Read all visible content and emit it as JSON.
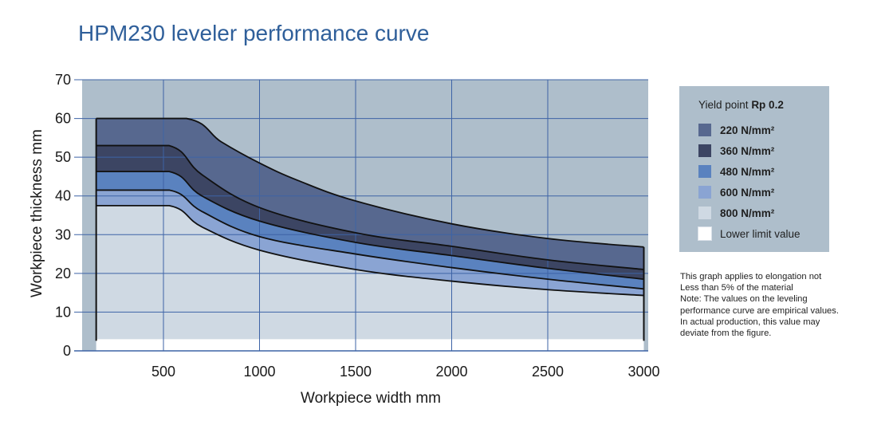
{
  "chart_data": {
    "type": "area",
    "title": "HPM230 leveler performance curve",
    "xlabel": "Workpiece width mm",
    "ylabel": "Workpiece thickness mm",
    "xlim": [
      0,
      3000
    ],
    "ylim": [
      0,
      70
    ],
    "x_ticks": [
      500,
      1000,
      1500,
      2000,
      2500,
      3000
    ],
    "y_ticks": [
      0,
      10,
      20,
      30,
      40,
      50,
      60,
      70
    ],
    "grid": true,
    "legend_position": "right",
    "legend_title": "Yield point",
    "legend_title_bold": "Rp 0.2",
    "series": [
      {
        "name": "220 N/mm²",
        "color": "#57688f",
        "x": [
          150,
          620,
          800,
          1000,
          1200,
          1500,
          2000,
          2500,
          3000
        ],
        "y": [
          60,
          60,
          54,
          48.5,
          44,
          38.7,
          32.8,
          29,
          26.8
        ]
      },
      {
        "name": "360 N/mm²",
        "color": "#3c4563",
        "x": [
          150,
          530,
          700,
          1000,
          1500,
          2000,
          2500,
          3000
        ],
        "y": [
          53,
          53,
          45.5,
          37,
          30.5,
          27,
          23.5,
          21
        ]
      },
      {
        "name": "480 N/mm²",
        "color": "#5a82bf",
        "x": [
          150,
          530,
          700,
          1000,
          1500,
          2000,
          2500,
          3000
        ],
        "y": [
          46.3,
          46.3,
          40,
          33.5,
          28,
          24.6,
          21.3,
          18.5
        ]
      },
      {
        "name": "600 N/mm²",
        "color": "#8aa4d3",
        "x": [
          150,
          530,
          700,
          1000,
          1500,
          2000,
          2500,
          3000
        ],
        "y": [
          41.5,
          41.5,
          36,
          29.5,
          25,
          21.5,
          18.5,
          16
        ]
      },
      {
        "name": "800 N/mm²",
        "color": "#cfd9e3",
        "x": [
          150,
          530,
          700,
          1000,
          1500,
          2000,
          2500,
          3000
        ],
        "y": [
          37.5,
          37.5,
          32,
          26,
          21,
          18,
          15.8,
          14.3
        ]
      },
      {
        "name": "Lower limit value",
        "color": "#ffffff",
        "x": [
          150,
          3000
        ],
        "y": [
          3,
          3
        ]
      }
    ],
    "note": [
      "This graph applies to elongation not",
      "Less than 5% of the material",
      "Note: The values on the leveling",
      "performance curve are empirical values.",
      "In actual production, this value may",
      "deviate from the figure."
    ]
  },
  "colors": {
    "plot_background": "#aebecb",
    "grid_lines": "#3d63a6",
    "title": "#2f5f9a"
  }
}
